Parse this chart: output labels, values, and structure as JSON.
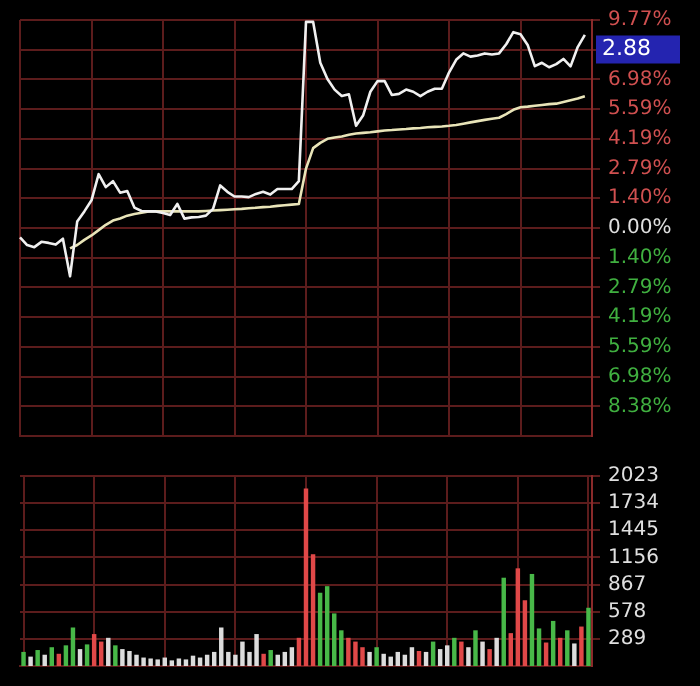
{
  "chart_data": [
    {
      "type": "line",
      "marker": "none",
      "grid": true,
      "tick_labels": "y",
      "categories": [
        null,
        null,
        null,
        null,
        null,
        null,
        null,
        null,
        null,
        null,
        null,
        null,
        null,
        null,
        null,
        null,
        null,
        null,
        null,
        null,
        null,
        null,
        null,
        null,
        null,
        null,
        null,
        null,
        null,
        null,
        null,
        null,
        null,
        null,
        null,
        null,
        null,
        null,
        null,
        null,
        null,
        null,
        null,
        null,
        null,
        null,
        null,
        null,
        null,
        null,
        null,
        null,
        null,
        null,
        null,
        null,
        null,
        null,
        null,
        null,
        null,
        null,
        null,
        null,
        null,
        null,
        null,
        null,
        null,
        null,
        null,
        null,
        null,
        null,
        null,
        null,
        null,
        null,
        null,
        null,
        null
      ],
      "ylim": [
        -9.77,
        9.77
      ],
      "yticks": [
        {
          "value": 9.77,
          "label": "9.77%"
        },
        {
          "value": 8.38,
          "label": null
        },
        {
          "value": 6.98,
          "label": "6.98%"
        },
        {
          "value": 5.59,
          "label": "5.59%"
        },
        {
          "value": 4.19,
          "label": "4.19%"
        },
        {
          "value": 2.79,
          "label": "2.79%"
        },
        {
          "value": 1.4,
          "label": "1.40%"
        },
        {
          "value": 0,
          "label": "0.00%"
        },
        {
          "value": -1.4,
          "label": "1.40%"
        },
        {
          "value": -2.79,
          "label": "2.79%"
        },
        {
          "value": -4.19,
          "label": "4.19%"
        },
        {
          "value": -5.59,
          "label": "5.59%"
        },
        {
          "value": -6.98,
          "label": "6.98%"
        },
        {
          "value": -8.38,
          "label": "8.38%"
        }
      ],
      "annotations": [
        "2.88"
      ],
      "series": [
        {
          "color": "#f0f0f0",
          "values": [
            -0.44,
            -0.8,
            -0.9,
            -0.65,
            -0.7,
            -0.78,
            -0.5,
            -2.27,
            0.3,
            0.78,
            1.3,
            2.53,
            1.92,
            2.2,
            1.66,
            1.74,
            0.96,
            0.8,
            0.78,
            0.78,
            0.7,
            0.61,
            1.13,
            0.44,
            0.5,
            0.52,
            0.58,
            0.9,
            2.0,
            1.7,
            1.48,
            1.48,
            1.45,
            1.6,
            1.7,
            1.57,
            1.83,
            1.83,
            1.83,
            2.2,
            9.68,
            9.68,
            7.76,
            7.0,
            6.5,
            6.2,
            6.28,
            4.8,
            5.3,
            6.4,
            6.9,
            6.9,
            6.25,
            6.3,
            6.5,
            6.4,
            6.19,
            6.4,
            6.54,
            6.54,
            7.3,
            7.9,
            8.2,
            8.05,
            8.1,
            8.2,
            8.15,
            8.2,
            8.63,
            9.2,
            9.1,
            8.6,
            7.6,
            7.76,
            7.55,
            7.7,
            7.94,
            7.59,
            8.5,
            9.07,
            null
          ]
        },
        {
          "color": "#e8e4b8",
          "values": [
            null,
            null,
            null,
            null,
            null,
            null,
            null,
            -0.96,
            -0.8,
            -0.56,
            -0.35,
            -0.1,
            0.15,
            0.35,
            0.45,
            0.58,
            0.66,
            0.72,
            0.78,
            0.78,
            0.78,
            0.78,
            0.78,
            0.78,
            0.78,
            0.78,
            0.8,
            0.82,
            0.84,
            0.86,
            0.88,
            0.9,
            0.93,
            0.95,
            0.98,
            1.0,
            1.04,
            1.07,
            1.1,
            1.13,
            2.79,
            3.75,
            4.0,
            4.19,
            4.25,
            4.3,
            4.38,
            4.44,
            4.47,
            4.5,
            4.54,
            4.58,
            4.6,
            4.63,
            4.65,
            4.68,
            4.7,
            4.73,
            4.75,
            4.77,
            4.8,
            4.84,
            4.9,
            4.96,
            5.02,
            5.08,
            5.13,
            5.18,
            5.35,
            5.55,
            5.67,
            5.7,
            5.74,
            5.78,
            5.82,
            5.84,
            5.92,
            6.0,
            6.08,
            6.19,
            null
          ]
        }
      ]
    },
    {
      "type": "bar",
      "grid": true,
      "tick_labels": "y",
      "categories": [
        null,
        null,
        null,
        null,
        null,
        null,
        null,
        null,
        null,
        null,
        null,
        null,
        null,
        null,
        null,
        null,
        null,
        null,
        null,
        null,
        null,
        null,
        null,
        null,
        null,
        null,
        null,
        null,
        null,
        null,
        null,
        null,
        null,
        null,
        null,
        null,
        null,
        null,
        null,
        null,
        null,
        null,
        null,
        null,
        null,
        null,
        null,
        null,
        null,
        null,
        null,
        null,
        null,
        null,
        null,
        null,
        null,
        null,
        null,
        null,
        null,
        null,
        null,
        null,
        null,
        null,
        null,
        null,
        null,
        null,
        null,
        null,
        null,
        null,
        null,
        null,
        null,
        null,
        null,
        null,
        null
      ],
      "ylim": [
        0,
        2023
      ],
      "yticks": [
        289,
        578,
        867,
        1156,
        1445,
        1734,
        2023
      ],
      "series": [
        {
          "values": [
            150,
            100,
            170,
            120,
            200,
            130,
            220,
            410,
            180,
            230,
            340,
            260,
            300,
            220,
            180,
            160,
            120,
            90,
            80,
            70,
            90,
            60,
            80,
            70,
            110,
            90,
            120,
            150,
            410,
            150,
            120,
            260,
            150,
            340,
            130,
            170,
            120,
            150,
            200,
            300,
            1890,
            1190,
            780,
            850,
            560,
            380,
            300,
            260,
            200,
            150,
            200,
            130,
            100,
            150,
            120,
            200,
            160,
            150,
            260,
            180,
            220,
            300,
            260,
            200,
            380,
            260,
            180,
            300,
            940,
            350,
            1040,
            700,
            980,
            400,
            250,
            480,
            300,
            380,
            240,
            420,
            620
          ],
          "colors": [
            "#48b848",
            "#dcdcdc",
            "#48b848",
            "#dcdcdc",
            "#48b848",
            "#e04848",
            "#48b848",
            "#48b848",
            "#dcdcdc",
            "#48b848",
            "#e04848",
            "#e04848",
            "#dcdcdc",
            "#48b848",
            "#dcdcdc",
            "#dcdcdc",
            "#dcdcdc",
            "#dcdcdc",
            "#dcdcdc",
            "#dcdcdc",
            "#dcdcdc",
            "#dcdcdc",
            "#dcdcdc",
            "#dcdcdc",
            "#dcdcdc",
            "#dcdcdc",
            "#dcdcdc",
            "#dcdcdc",
            "#dcdcdc",
            "#dcdcdc",
            "#dcdcdc",
            "#dcdcdc",
            "#dcdcdc",
            "#dcdcdc",
            "#e04848",
            "#48b848",
            "#dcdcdc",
            "#dcdcdc",
            "#dcdcdc",
            "#e04848",
            "#e04848",
            "#e04848",
            "#48b848",
            "#48b848",
            "#48b848",
            "#48b848",
            "#e04848",
            "#e04848",
            "#e04848",
            "#dcdcdc",
            "#48b848",
            "#dcdcdc",
            "#dcdcdc",
            "#dcdcdc",
            "#dcdcdc",
            "#dcdcdc",
            "#e04848",
            "#dcdcdc",
            "#48b848",
            "#dcdcdc",
            "#dcdcdc",
            "#48b848",
            "#e04848",
            "#dcdcdc",
            "#48b848",
            "#dcdcdc",
            "#e04848",
            "#dcdcdc",
            "#48b848",
            "#e04848",
            "#e04848",
            "#e04848",
            "#48b848",
            "#48b848",
            "#e04848",
            "#48b848",
            "#e04848",
            "#48b848",
            "#dcdcdc",
            "#e04848",
            "#48b848"
          ]
        }
      ]
    }
  ]
}
